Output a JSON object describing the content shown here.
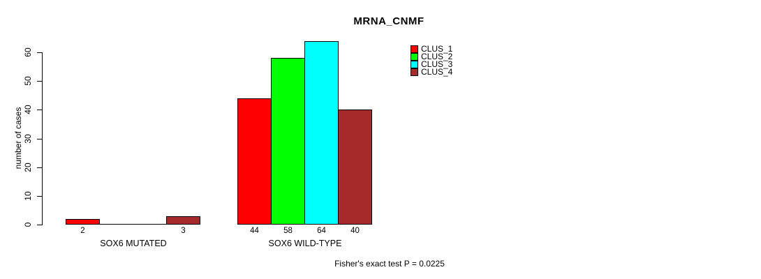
{
  "title": "MRNA_CNMF",
  "y_axis": {
    "label": "number of cases",
    "ticks": [
      0,
      10,
      20,
      30,
      40,
      50,
      60
    ]
  },
  "groups": [
    {
      "label": "SOX6 MUTATED"
    },
    {
      "label": "SOX6 WILD-TYPE"
    }
  ],
  "legend": {
    "items": [
      {
        "label": "CLUS_1",
        "color": "#ff0000"
      },
      {
        "label": "CLUS_2",
        "color": "#00ff00"
      },
      {
        "label": "CLUS_3",
        "color": "#00ffff"
      },
      {
        "label": "CLUS_4",
        "color": "#a52a2a"
      }
    ]
  },
  "footnote": "Fisher's exact test P = 0.0225",
  "chart_data": {
    "type": "bar",
    "title": "MRNA_CNMF",
    "xlabel": "",
    "ylabel": "number of cases",
    "ylim": [
      0,
      60
    ],
    "yticks": [
      0,
      10,
      20,
      30,
      40,
      50,
      60
    ],
    "categories": [
      "SOX6 MUTATED",
      "SOX6 WILD-TYPE"
    ],
    "series": [
      {
        "name": "CLUS_1",
        "color": "#ff0000",
        "values": [
          2,
          44
        ]
      },
      {
        "name": "CLUS_2",
        "color": "#00ff00",
        "values": [
          0,
          58
        ]
      },
      {
        "name": "CLUS_3",
        "color": "#00ffff",
        "values": [
          0,
          64
        ]
      },
      {
        "name": "CLUS_4",
        "color": "#a52a2a",
        "values": [
          3,
          40
        ]
      }
    ],
    "value_labels": {
      "show": true,
      "hide_zero": true
    },
    "legend_entries": [
      "CLUS_1",
      "CLUS_2",
      "CLUS_3",
      "CLUS_4"
    ],
    "legend_position": "top-right",
    "grid": false,
    "annotation": "Fisher's exact test P = 0.0225"
  }
}
